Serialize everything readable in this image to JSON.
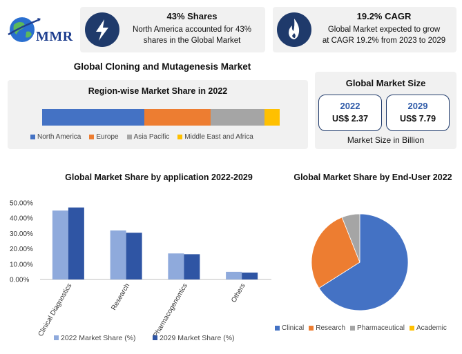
{
  "logo": {
    "text": "MMR"
  },
  "stat_shares": {
    "icon": "lightning-icon",
    "title": "43% Shares",
    "line1": "North America accounted for 43%",
    "line2": "shares in the Global Market"
  },
  "stat_cagr": {
    "icon": "flame-icon",
    "title": "19.2% CAGR",
    "line1": "Global Market expected to grow",
    "line2": "at CAGR 19.2% from 2023 to 2029"
  },
  "main_title": "Global Cloning and Mutagenesis Market",
  "region": {
    "title": "Region-wise Market Share in 2022",
    "segments": [
      {
        "name": "North America",
        "value": 43,
        "color": "#4472c4"
      },
      {
        "name": "Europe",
        "value": 28,
        "color": "#ed7d31"
      },
      {
        "name": "Asia Pacific",
        "value": 22.5,
        "color": "#a5a5a5"
      },
      {
        "name": "Middle East and Africa",
        "value": 6.5,
        "color": "#ffc000"
      }
    ]
  },
  "market_size": {
    "title": "Global Market Size",
    "items": [
      {
        "year": "2022",
        "value": "US$ 2.37"
      },
      {
        "year": "2029",
        "value": "US$ 7.79"
      }
    ],
    "note": "Market Size in Billion"
  },
  "chart_data": [
    {
      "type": "bar",
      "title": "Global Market Share by application 2022-2029",
      "categories": [
        "Clinical Diagnostics",
        "Research",
        "Pharmacogenomics",
        "Others"
      ],
      "series": [
        {
          "name": "2022 Market Share (%)",
          "values": [
            45,
            32,
            17,
            5
          ],
          "color": "#8faadc"
        },
        {
          "name": "2029 Market Share (%)",
          "values": [
            47,
            30.5,
            16.5,
            4.5
          ],
          "color": "#2f55a4"
        }
      ],
      "ylim": [
        0,
        50
      ],
      "yticks": [
        "0.00%",
        "10.00%",
        "20.00%",
        "30.00%",
        "40.00%",
        "50.00%"
      ]
    },
    {
      "type": "pie",
      "title": "Global Market Share by End-User 2022",
      "categories": [
        "Clinical",
        "Research",
        "Pharmaceutical",
        "Academic"
      ],
      "values": [
        66,
        28,
        6,
        0
      ],
      "colors": [
        "#4472c4",
        "#ed7d31",
        "#a5a5a5",
        "#ffc000"
      ]
    }
  ]
}
